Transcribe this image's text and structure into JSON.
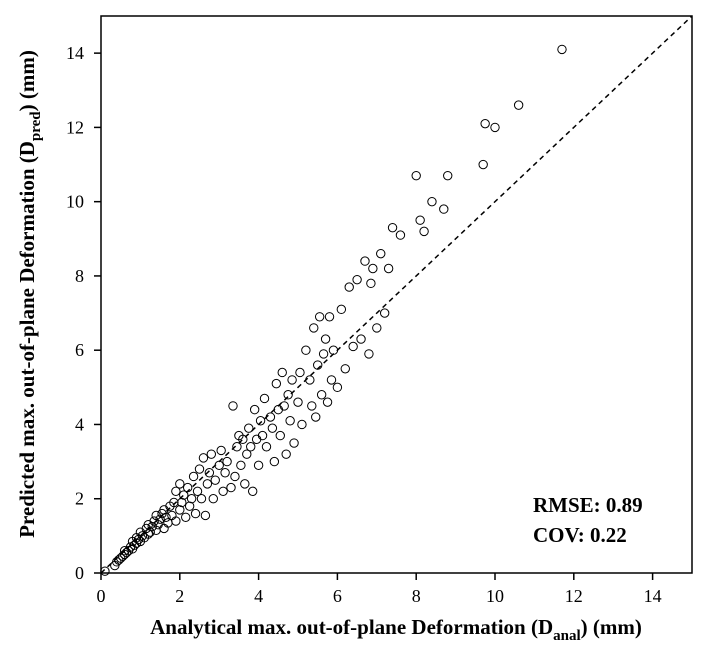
{
  "chart_data": {
    "type": "scatter",
    "title": "",
    "xlabel": {
      "prefix": "Analytical max. out-of-plane Deformation (D",
      "sub": "anal",
      "suffix": ") (mm)"
    },
    "ylabel": {
      "prefix": "Predicted max. out-of-plane Deformation (D",
      "sub": "pred",
      "suffix": ") (mm)"
    },
    "xlim": [
      0,
      15
    ],
    "ylim": [
      0,
      15
    ],
    "xticks": [
      "0",
      "2",
      "4",
      "6",
      "8",
      "10",
      "12",
      "14"
    ],
    "yticks": [
      "0",
      "2",
      "4",
      "6",
      "8",
      "10",
      "12",
      "14"
    ],
    "reference_line": {
      "from": [
        0,
        0
      ],
      "to": [
        15,
        15
      ],
      "style": "dashed"
    },
    "annotations": {
      "rmse": "RMSE: 0.89",
      "cov": "COV: 0.22"
    },
    "points": [
      [
        0.1,
        0.05
      ],
      [
        0.35,
        0.2
      ],
      [
        0.4,
        0.3
      ],
      [
        0.45,
        0.35
      ],
      [
        0.5,
        0.4
      ],
      [
        0.55,
        0.45
      ],
      [
        0.6,
        0.5
      ],
      [
        0.6,
        0.6
      ],
      [
        0.65,
        0.55
      ],
      [
        0.7,
        0.6
      ],
      [
        0.75,
        0.7
      ],
      [
        0.8,
        0.65
      ],
      [
        0.8,
        0.85
      ],
      [
        0.85,
        0.75
      ],
      [
        0.9,
        0.8
      ],
      [
        0.9,
        0.95
      ],
      [
        0.95,
        0.9
      ],
      [
        1.0,
        0.85
      ],
      [
        1.0,
        1.1
      ],
      [
        1.05,
        1.0
      ],
      [
        1.1,
        0.95
      ],
      [
        1.15,
        1.2
      ],
      [
        1.2,
        1.05
      ],
      [
        1.2,
        1.3
      ],
      [
        1.25,
        1.1
      ],
      [
        1.3,
        1.25
      ],
      [
        1.35,
        1.4
      ],
      [
        1.4,
        1.15
      ],
      [
        1.4,
        1.55
      ],
      [
        1.45,
        1.3
      ],
      [
        1.5,
        1.45
      ],
      [
        1.55,
        1.6
      ],
      [
        1.6,
        1.2
      ],
      [
        1.6,
        1.7
      ],
      [
        1.65,
        1.5
      ],
      [
        1.7,
        1.35
      ],
      [
        1.75,
        1.8
      ],
      [
        1.8,
        1.55
      ],
      [
        1.85,
        1.9
      ],
      [
        1.9,
        1.4
      ],
      [
        1.9,
        2.2
      ],
      [
        2.0,
        1.7
      ],
      [
        2.0,
        2.4
      ],
      [
        2.05,
        1.9
      ],
      [
        2.1,
        2.1
      ],
      [
        2.15,
        1.5
      ],
      [
        2.2,
        2.3
      ],
      [
        2.25,
        1.8
      ],
      [
        2.3,
        2.0
      ],
      [
        2.35,
        2.6
      ],
      [
        2.4,
        1.6
      ],
      [
        2.45,
        2.2
      ],
      [
        2.5,
        2.8
      ],
      [
        2.55,
        2.0
      ],
      [
        2.6,
        3.1
      ],
      [
        2.65,
        1.55
      ],
      [
        2.7,
        2.4
      ],
      [
        2.75,
        2.7
      ],
      [
        2.8,
        3.2
      ],
      [
        2.85,
        2.0
      ],
      [
        2.9,
        2.5
      ],
      [
        3.0,
        2.9
      ],
      [
        3.05,
        3.3
      ],
      [
        3.1,
        2.2
      ],
      [
        3.15,
        2.7
      ],
      [
        3.2,
        3.0
      ],
      [
        3.3,
        2.3
      ],
      [
        3.35,
        4.5
      ],
      [
        3.4,
        2.6
      ],
      [
        3.45,
        3.4
      ],
      [
        3.5,
        3.7
      ],
      [
        3.55,
        2.9
      ],
      [
        3.6,
        3.6
      ],
      [
        3.65,
        2.4
      ],
      [
        3.7,
        3.2
      ],
      [
        3.75,
        3.9
      ],
      [
        3.8,
        3.4
      ],
      [
        3.85,
        2.2
      ],
      [
        3.9,
        4.4
      ],
      [
        3.95,
        3.6
      ],
      [
        4.0,
        2.9
      ],
      [
        4.05,
        4.1
      ],
      [
        4.1,
        3.7
      ],
      [
        4.15,
        4.7
      ],
      [
        4.2,
        3.4
      ],
      [
        4.3,
        4.2
      ],
      [
        4.35,
        3.9
      ],
      [
        4.4,
        3.0
      ],
      [
        4.45,
        5.1
      ],
      [
        4.5,
        4.4
      ],
      [
        4.55,
        3.7
      ],
      [
        4.6,
        5.4
      ],
      [
        4.65,
        4.5
      ],
      [
        4.7,
        3.2
      ],
      [
        4.75,
        4.8
      ],
      [
        4.8,
        4.1
      ],
      [
        4.85,
        5.2
      ],
      [
        4.9,
        3.5
      ],
      [
        5.0,
        4.6
      ],
      [
        5.05,
        5.4
      ],
      [
        5.1,
        4.0
      ],
      [
        5.2,
        6.0
      ],
      [
        5.3,
        5.2
      ],
      [
        5.35,
        4.5
      ],
      [
        5.4,
        6.6
      ],
      [
        5.45,
        4.2
      ],
      [
        5.5,
        5.6
      ],
      [
        5.55,
        6.9
      ],
      [
        5.6,
        4.8
      ],
      [
        5.65,
        5.9
      ],
      [
        5.7,
        6.3
      ],
      [
        5.75,
        4.6
      ],
      [
        5.8,
        6.9
      ],
      [
        5.85,
        5.2
      ],
      [
        5.9,
        6.0
      ],
      [
        6.0,
        5.0
      ],
      [
        6.1,
        7.1
      ],
      [
        6.2,
        5.5
      ],
      [
        6.3,
        7.7
      ],
      [
        6.4,
        6.1
      ],
      [
        6.5,
        7.9
      ],
      [
        6.6,
        6.3
      ],
      [
        6.7,
        8.4
      ],
      [
        6.8,
        5.9
      ],
      [
        6.85,
        7.8
      ],
      [
        6.9,
        8.2
      ],
      [
        7.0,
        6.6
      ],
      [
        7.1,
        8.6
      ],
      [
        7.2,
        7.0
      ],
      [
        7.3,
        8.2
      ],
      [
        7.4,
        9.3
      ],
      [
        7.6,
        9.1
      ],
      [
        8.0,
        10.7
      ],
      [
        8.1,
        9.5
      ],
      [
        8.2,
        9.2
      ],
      [
        8.4,
        10.0
      ],
      [
        8.7,
        9.8
      ],
      [
        8.8,
        10.7
      ],
      [
        9.7,
        11.0
      ],
      [
        9.75,
        12.1
      ],
      [
        10.0,
        12.0
      ],
      [
        10.6,
        12.6
      ],
      [
        11.7,
        14.1
      ]
    ]
  }
}
